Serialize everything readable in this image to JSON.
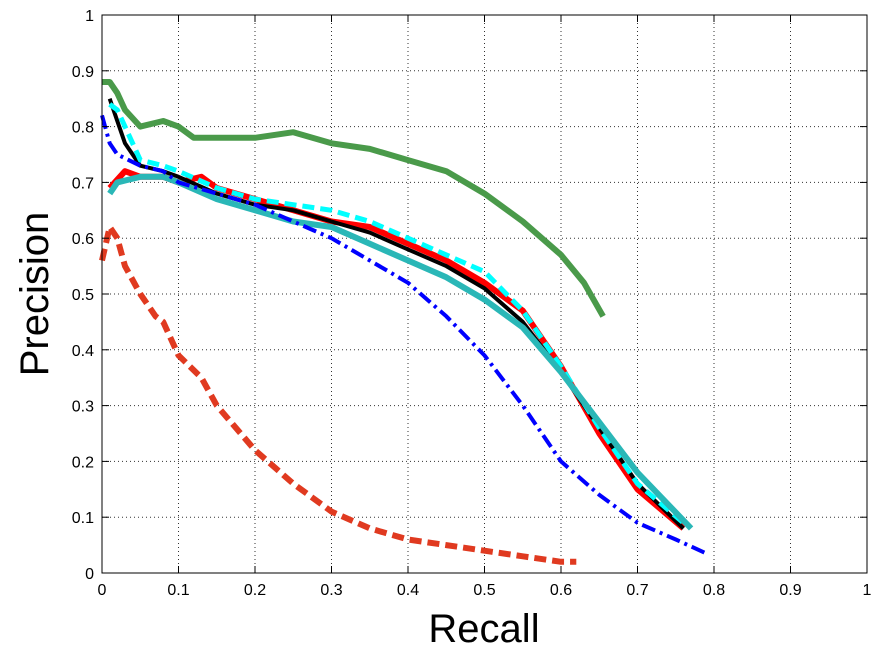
{
  "chart_data": {
    "type": "line",
    "title": "",
    "xlabel": "Recall",
    "ylabel": "Precision",
    "xlim": [
      0,
      1
    ],
    "ylim": [
      0,
      1
    ],
    "xticks": [
      "0",
      "0.1",
      "0.2",
      "0.3",
      "0.4",
      "0.5",
      "0.6",
      "0.7",
      "0.8",
      "0.9",
      "1"
    ],
    "yticks": [
      "0",
      "0.1",
      "0.2",
      "0.3",
      "0.4",
      "0.5",
      "0.6",
      "0.7",
      "0.8",
      "0.9",
      "1"
    ],
    "grid": true,
    "legend": "none",
    "series": [
      {
        "color": "#4a9a4a",
        "style": "solid",
        "width": 6,
        "x": [
          0.0,
          0.01,
          0.02,
          0.03,
          0.05,
          0.08,
          0.1,
          0.12,
          0.15,
          0.2,
          0.25,
          0.3,
          0.35,
          0.4,
          0.45,
          0.5,
          0.55,
          0.6,
          0.63,
          0.655
        ],
        "y": [
          0.88,
          0.88,
          0.86,
          0.83,
          0.8,
          0.81,
          0.8,
          0.78,
          0.78,
          0.78,
          0.79,
          0.77,
          0.76,
          0.74,
          0.72,
          0.68,
          0.63,
          0.57,
          0.52,
          0.46
        ]
      },
      {
        "color": "#e03a20",
        "style": "dashed",
        "width": 6,
        "x": [
          0.0,
          0.01,
          0.02,
          0.03,
          0.05,
          0.07,
          0.08,
          0.1,
          0.13,
          0.15,
          0.2,
          0.25,
          0.3,
          0.35,
          0.4,
          0.45,
          0.5,
          0.55,
          0.6,
          0.62
        ],
        "y": [
          0.56,
          0.62,
          0.6,
          0.55,
          0.5,
          0.46,
          0.45,
          0.39,
          0.35,
          0.3,
          0.22,
          0.16,
          0.11,
          0.08,
          0.06,
          0.05,
          0.04,
          0.03,
          0.02,
          0.02
        ]
      },
      {
        "color": "#ff0000",
        "style": "solid",
        "width": 6,
        "x": [
          0.01,
          0.03,
          0.05,
          0.08,
          0.1,
          0.13,
          0.15,
          0.2,
          0.25,
          0.3,
          0.35,
          0.4,
          0.45,
          0.5,
          0.55,
          0.6,
          0.65,
          0.7,
          0.76
        ],
        "y": [
          0.69,
          0.72,
          0.71,
          0.71,
          0.7,
          0.71,
          0.69,
          0.67,
          0.65,
          0.63,
          0.62,
          0.59,
          0.56,
          0.52,
          0.47,
          0.37,
          0.25,
          0.15,
          0.08
        ]
      },
      {
        "color": "#000000",
        "style": "solid",
        "width": 4,
        "x": [
          0.01,
          0.02,
          0.03,
          0.05,
          0.08,
          0.1,
          0.15,
          0.2,
          0.25,
          0.3,
          0.35,
          0.4,
          0.45,
          0.5,
          0.55,
          0.6,
          0.65,
          0.7,
          0.76
        ],
        "y": [
          0.85,
          0.81,
          0.77,
          0.73,
          0.72,
          0.71,
          0.68,
          0.66,
          0.65,
          0.63,
          0.61,
          0.58,
          0.55,
          0.51,
          0.45,
          0.36,
          0.26,
          0.16,
          0.08
        ]
      },
      {
        "color": "#00ffff",
        "style": "dashed",
        "width": 5,
        "x": [
          0.01,
          0.02,
          0.03,
          0.05,
          0.08,
          0.1,
          0.15,
          0.2,
          0.25,
          0.3,
          0.35,
          0.4,
          0.45,
          0.5,
          0.55,
          0.6,
          0.65,
          0.7,
          0.76
        ],
        "y": [
          0.84,
          0.83,
          0.8,
          0.74,
          0.73,
          0.72,
          0.69,
          0.67,
          0.66,
          0.65,
          0.63,
          0.6,
          0.57,
          0.54,
          0.47,
          0.37,
          0.26,
          0.16,
          0.09
        ]
      },
      {
        "color": "#2ab7b7",
        "style": "solid",
        "width": 6,
        "x": [
          0.01,
          0.02,
          0.05,
          0.08,
          0.1,
          0.15,
          0.2,
          0.25,
          0.3,
          0.35,
          0.4,
          0.45,
          0.5,
          0.55,
          0.6,
          0.65,
          0.7,
          0.77
        ],
        "y": [
          0.68,
          0.7,
          0.71,
          0.71,
          0.7,
          0.67,
          0.65,
          0.63,
          0.62,
          0.59,
          0.56,
          0.53,
          0.49,
          0.44,
          0.36,
          0.27,
          0.18,
          0.08
        ]
      },
      {
        "color": "#0000ff",
        "style": "dashdot",
        "width": 4,
        "x": [
          0.0,
          0.01,
          0.02,
          0.05,
          0.08,
          0.1,
          0.15,
          0.2,
          0.25,
          0.3,
          0.35,
          0.4,
          0.45,
          0.5,
          0.55,
          0.6,
          0.65,
          0.7,
          0.75,
          0.79
        ],
        "y": [
          0.82,
          0.77,
          0.75,
          0.73,
          0.72,
          0.7,
          0.68,
          0.66,
          0.63,
          0.6,
          0.56,
          0.52,
          0.46,
          0.39,
          0.3,
          0.2,
          0.14,
          0.09,
          0.06,
          0.035
        ]
      }
    ]
  }
}
